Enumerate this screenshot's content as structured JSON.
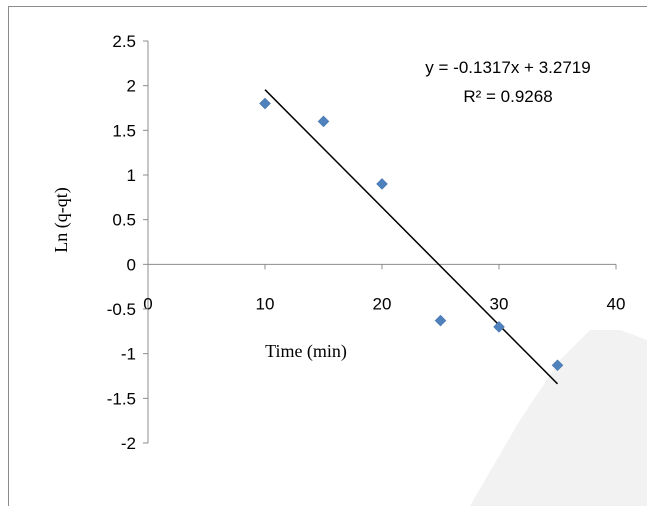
{
  "chart_data": {
    "type": "scatter",
    "title": "",
    "xlabel": "Time (min)",
    "ylabel": "Ln (q-qt)",
    "xlim": [
      0,
      40
    ],
    "ylim": [
      -2,
      2.5
    ],
    "x_ticks": [
      0,
      10,
      20,
      30,
      40
    ],
    "y_ticks": [
      2.5,
      2,
      1.5,
      1,
      0.5,
      0,
      -0.5,
      -1,
      -1.5,
      -2
    ],
    "x_tick_labels": [
      "0",
      "10",
      "20",
      "30",
      "40"
    ],
    "y_tick_labels": [
      "2.5",
      "2",
      "1.5",
      "1",
      "0.5",
      "0",
      "-0.5",
      "-1",
      "-1.5",
      "-2"
    ],
    "grid": false,
    "series": [
      {
        "x": [
          10,
          15,
          20,
          25,
          30,
          35
        ],
        "y": [
          1.8,
          1.6,
          0.9,
          -0.63,
          -0.7,
          -1.13
        ],
        "color": "#4f81bd",
        "marker": "diamond"
      }
    ],
    "trendline": {
      "type": "linear",
      "slope": -0.1317,
      "intercept": 3.2719,
      "x_range": [
        10,
        35
      ],
      "color": "#000000"
    },
    "annotations": {
      "equation": "y = -0.1317x + 3.2719",
      "r_squared": "R² = 0.9268"
    }
  }
}
